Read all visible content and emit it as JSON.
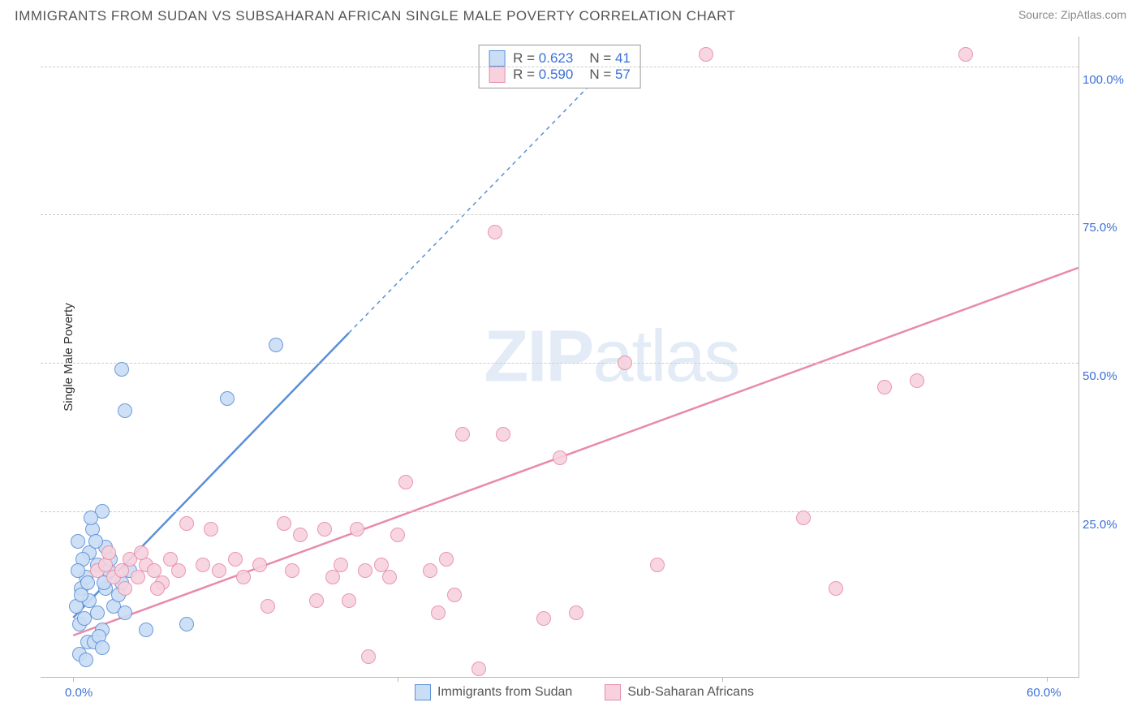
{
  "header": {
    "title": "IMMIGRANTS FROM SUDAN VS SUBSAHARAN AFRICAN SINGLE MALE POVERTY CORRELATION CHART",
    "source": "Source: ZipAtlas.com"
  },
  "chart": {
    "type": "scatter",
    "y_axis_label": "Single Male Poverty",
    "xlim": [
      -2,
      62
    ],
    "ylim": [
      -3,
      105
    ],
    "x_ticks": [
      0,
      20,
      40,
      60
    ],
    "x_tick_labels": [
      "0.0%",
      "",
      "",
      "60.0%"
    ],
    "y_ticks": [
      25,
      50,
      75,
      100
    ],
    "y_tick_labels": [
      "25.0%",
      "50.0%",
      "75.0%",
      "100.0%"
    ],
    "background_color": "#ffffff",
    "grid_color": "#cccccc",
    "axis_color": "#bbbbbb",
    "tick_label_color": "#3b6fd8",
    "marker_radius": 9,
    "marker_stroke_width": 1.5,
    "marker_fill_opacity": 0.25,
    "series": [
      {
        "name": "Immigrants from Sudan",
        "color": "#5b8fd8",
        "fill": "#c9ddf5",
        "R": "0.623",
        "N": "41",
        "trend": {
          "x1": 0,
          "y1": 7,
          "x2": 17,
          "y2": 55,
          "dash_to_x": 33,
          "dash_to_y": 100,
          "width": 2.5
        },
        "points": [
          [
            0.2,
            9
          ],
          [
            0.5,
            12
          ],
          [
            0.4,
            6
          ],
          [
            0.8,
            14
          ],
          [
            1.0,
            18
          ],
          [
            1.0,
            10
          ],
          [
            1.2,
            22
          ],
          [
            1.5,
            8
          ],
          [
            1.5,
            16
          ],
          [
            1.8,
            25
          ],
          [
            1.8,
            5
          ],
          [
            0.3,
            20
          ],
          [
            0.6,
            17
          ],
          [
            0.9,
            13
          ],
          [
            2.0,
            12
          ],
          [
            2.0,
            19
          ],
          [
            2.2,
            15
          ],
          [
            2.5,
            9
          ],
          [
            2.8,
            11
          ],
          [
            3.0,
            13
          ],
          [
            3.2,
            8
          ],
          [
            0.9,
            3
          ],
          [
            1.3,
            3
          ],
          [
            1.6,
            4
          ],
          [
            1.8,
            2
          ],
          [
            0.4,
            1
          ],
          [
            0.8,
            0
          ],
          [
            3.5,
            15
          ],
          [
            3.0,
            49
          ],
          [
            3.2,
            42
          ],
          [
            4.5,
            5
          ],
          [
            7.0,
            6
          ],
          [
            9.5,
            44
          ],
          [
            12.5,
            53
          ],
          [
            0.5,
            11
          ],
          [
            1.1,
            24
          ],
          [
            1.4,
            20
          ],
          [
            0.7,
            7
          ],
          [
            1.9,
            13
          ],
          [
            2.3,
            17
          ],
          [
            0.3,
            15
          ]
        ]
      },
      {
        "name": "Sub-Saharan Africans",
        "color": "#e88ba8",
        "fill": "#f7d2de",
        "R": "0.590",
        "N": "57",
        "trend": {
          "x1": 0,
          "y1": 4,
          "x2": 62,
          "y2": 66,
          "width": 2.5
        },
        "points": [
          [
            1.5,
            15
          ],
          [
            2.0,
            16
          ],
          [
            2.5,
            14
          ],
          [
            3.0,
            15
          ],
          [
            3.5,
            17
          ],
          [
            4.0,
            14
          ],
          [
            4.5,
            16
          ],
          [
            5.0,
            15
          ],
          [
            5.5,
            13
          ],
          [
            6.0,
            17
          ],
          [
            6.5,
            15
          ],
          [
            7.0,
            23
          ],
          [
            8.0,
            16
          ],
          [
            8.5,
            22
          ],
          [
            9.0,
            15
          ],
          [
            10.0,
            17
          ],
          [
            10.5,
            14
          ],
          [
            11.5,
            16
          ],
          [
            12.0,
            9
          ],
          [
            13.0,
            23
          ],
          [
            13.5,
            15
          ],
          [
            14.0,
            21
          ],
          [
            15.0,
            10
          ],
          [
            15.5,
            22
          ],
          [
            16.0,
            14
          ],
          [
            16.5,
            16
          ],
          [
            17.0,
            10
          ],
          [
            17.5,
            22
          ],
          [
            18.0,
            15
          ],
          [
            18.2,
            0.5
          ],
          [
            19.0,
            16
          ],
          [
            19.5,
            14
          ],
          [
            20.0,
            21
          ],
          [
            20.5,
            30
          ],
          [
            22.0,
            15
          ],
          [
            22.5,
            8
          ],
          [
            23.0,
            17
          ],
          [
            23.5,
            11
          ],
          [
            24.0,
            38
          ],
          [
            25.0,
            -1.5
          ],
          [
            26.0,
            72
          ],
          [
            26.5,
            38
          ],
          [
            29.0,
            7
          ],
          [
            30.0,
            34
          ],
          [
            31.0,
            8
          ],
          [
            34.0,
            50
          ],
          [
            36.0,
            16
          ],
          [
            39.0,
            102
          ],
          [
            45.0,
            24
          ],
          [
            47.0,
            12
          ],
          [
            50.0,
            46
          ],
          [
            52.0,
            47
          ],
          [
            55.0,
            102
          ],
          [
            2.2,
            18
          ],
          [
            3.2,
            12
          ],
          [
            4.2,
            18
          ],
          [
            5.2,
            12
          ]
        ]
      }
    ],
    "legend": {
      "items": [
        {
          "label": "Immigrants from Sudan",
          "color": "#5b8fd8",
          "fill": "#c9ddf5"
        },
        {
          "label": "Sub-Saharan Africans",
          "color": "#e88ba8",
          "fill": "#f7d2de"
        }
      ]
    },
    "watermark": {
      "part1": "ZIP",
      "part2": "atlas"
    }
  }
}
